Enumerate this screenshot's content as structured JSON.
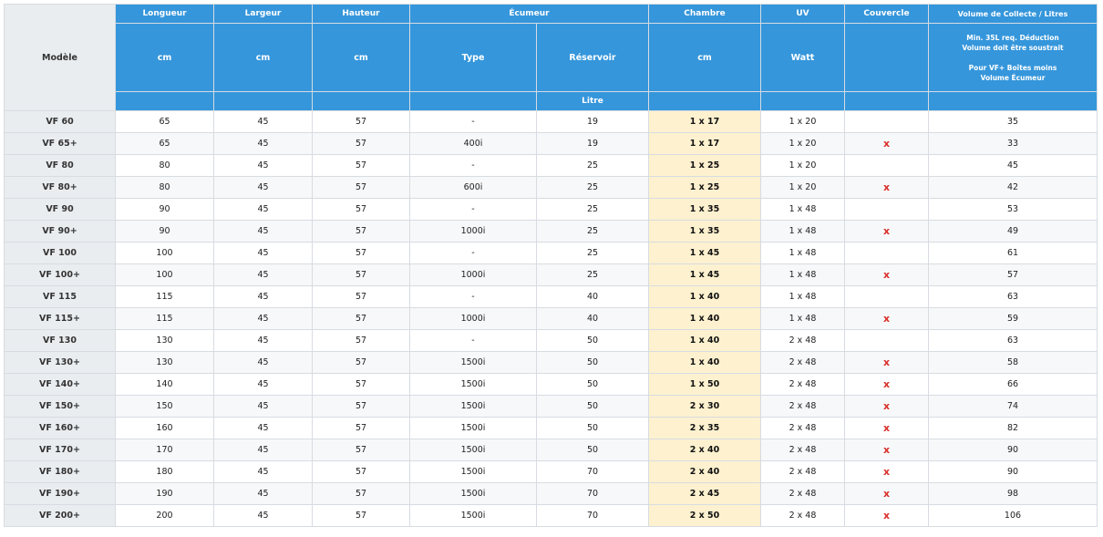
{
  "header": {
    "model": "Modèle",
    "longueur": "Longueur",
    "largeur": "Largeur",
    "hauteur": "Hauteur",
    "ecumeur": "Écumeur",
    "chambre": "Chambre",
    "uv": "UV",
    "couvercle": "Couvercle",
    "volume": "Volume de Collecte / Litres",
    "unit_cm_1": "cm",
    "unit_cm_2": "cm",
    "unit_cm_3": "cm",
    "type": "Type",
    "reservoir": "Réservoir",
    "unit_cm_4": "cm",
    "watt": "Watt",
    "note_1": "Min. 35L req. Déduction Volume doit être soustrait",
    "note_2": "Pour VF+ Boîtes moins Volume Écumeur",
    "litre": "Litre"
  },
  "rows": [
    {
      "model": "VF 60",
      "longueur": "65",
      "largeur": "45",
      "hauteur": "57",
      "type": "-",
      "reservoir": "19",
      "chambre": "1 x 17",
      "uv": "1 x 20",
      "couvercle": "",
      "volume": "35"
    },
    {
      "model": "VF 65+",
      "longueur": "65",
      "largeur": "45",
      "hauteur": "57",
      "type": "400i",
      "reservoir": "19",
      "chambre": "1 x 17",
      "uv": "1 x 20",
      "couvercle": "x",
      "volume": "33"
    },
    {
      "model": "VF 80",
      "longueur": "80",
      "largeur": "45",
      "hauteur": "57",
      "type": "-",
      "reservoir": "25",
      "chambre": "1 x 25",
      "uv": "1 x 20",
      "couvercle": "",
      "volume": "45"
    },
    {
      "model": "VF 80+",
      "longueur": "80",
      "largeur": "45",
      "hauteur": "57",
      "type": "600i",
      "reservoir": "25",
      "chambre": "1 x 25",
      "uv": "1 x 20",
      "couvercle": "x",
      "volume": "42"
    },
    {
      "model": "VF 90",
      "longueur": "90",
      "largeur": "45",
      "hauteur": "57",
      "type": "-",
      "reservoir": "25",
      "chambre": "1 x 35",
      "uv": "1 x 48",
      "couvercle": "",
      "volume": "53"
    },
    {
      "model": "VF 90+",
      "longueur": "90",
      "largeur": "45",
      "hauteur": "57",
      "type": "1000i",
      "reservoir": "25",
      "chambre": "1 x 35",
      "uv": "1 x 48",
      "couvercle": "x",
      "volume": "49"
    },
    {
      "model": "VF 100",
      "longueur": "100",
      "largeur": "45",
      "hauteur": "57",
      "type": "-",
      "reservoir": "25",
      "chambre": "1 x 45",
      "uv": "1 x 48",
      "couvercle": "",
      "volume": "61"
    },
    {
      "model": "VF 100+",
      "longueur": "100",
      "largeur": "45",
      "hauteur": "57",
      "type": "1000i",
      "reservoir": "25",
      "chambre": "1 x 45",
      "uv": "1 x 48",
      "couvercle": "x",
      "volume": "57"
    },
    {
      "model": "VF 115",
      "longueur": "115",
      "largeur": "45",
      "hauteur": "57",
      "type": "-",
      "reservoir": "40",
      "chambre": "1 x 40",
      "uv": "1 x 48",
      "couvercle": "",
      "volume": "63"
    },
    {
      "model": "VF 115+",
      "longueur": "115",
      "largeur": "45",
      "hauteur": "57",
      "type": "1000i",
      "reservoir": "40",
      "chambre": "1 x 40",
      "uv": "1 x 48",
      "couvercle": "x",
      "volume": "59"
    },
    {
      "model": "VF 130",
      "longueur": "130",
      "largeur": "45",
      "hauteur": "57",
      "type": "-",
      "reservoir": "50",
      "chambre": "1 x 40",
      "uv": "2 x 48",
      "couvercle": "",
      "volume": "63"
    },
    {
      "model": "VF 130+",
      "longueur": "130",
      "largeur": "45",
      "hauteur": "57",
      "type": "1500i",
      "reservoir": "50",
      "chambre": "1 x 40",
      "uv": "2 x 48",
      "couvercle": "x",
      "volume": "58"
    },
    {
      "model": "VF 140+",
      "longueur": "140",
      "largeur": "45",
      "hauteur": "57",
      "type": "1500i",
      "reservoir": "50",
      "chambre": "1 x 50",
      "uv": "2 x 48",
      "couvercle": "x",
      "volume": "66"
    },
    {
      "model": "VF 150+",
      "longueur": "150",
      "largeur": "45",
      "hauteur": "57",
      "type": "1500i",
      "reservoir": "50",
      "chambre": "2 x 30",
      "uv": "2 x 48",
      "couvercle": "x",
      "volume": "74"
    },
    {
      "model": "VF 160+",
      "longueur": "160",
      "largeur": "45",
      "hauteur": "57",
      "type": "1500i",
      "reservoir": "50",
      "chambre": "2 x 35",
      "uv": "2 x 48",
      "couvercle": "x",
      "volume": "82"
    },
    {
      "model": "VF 170+",
      "longueur": "170",
      "largeur": "45",
      "hauteur": "57",
      "type": "1500i",
      "reservoir": "50",
      "chambre": "2 x 40",
      "uv": "2 x 48",
      "couvercle": "x",
      "volume": "90"
    },
    {
      "model": "VF 180+",
      "longueur": "180",
      "largeur": "45",
      "hauteur": "57",
      "type": "1500i",
      "reservoir": "70",
      "chambre": "2 x 40",
      "uv": "2 x 48",
      "couvercle": "x",
      "volume": "90"
    },
    {
      "model": "VF 190+",
      "longueur": "190",
      "largeur": "45",
      "hauteur": "57",
      "type": "1500i",
      "reservoir": "70",
      "chambre": "2 x 45",
      "uv": "2 x 48",
      "couvercle": "x",
      "volume": "98"
    },
    {
      "model": "VF 200+",
      "longueur": "200",
      "largeur": "45",
      "hauteur": "57",
      "type": "1500i",
      "reservoir": "70",
      "chambre": "2 x 50",
      "uv": "2 x 48",
      "couvercle": "x",
      "volume": "106"
    }
  ]
}
